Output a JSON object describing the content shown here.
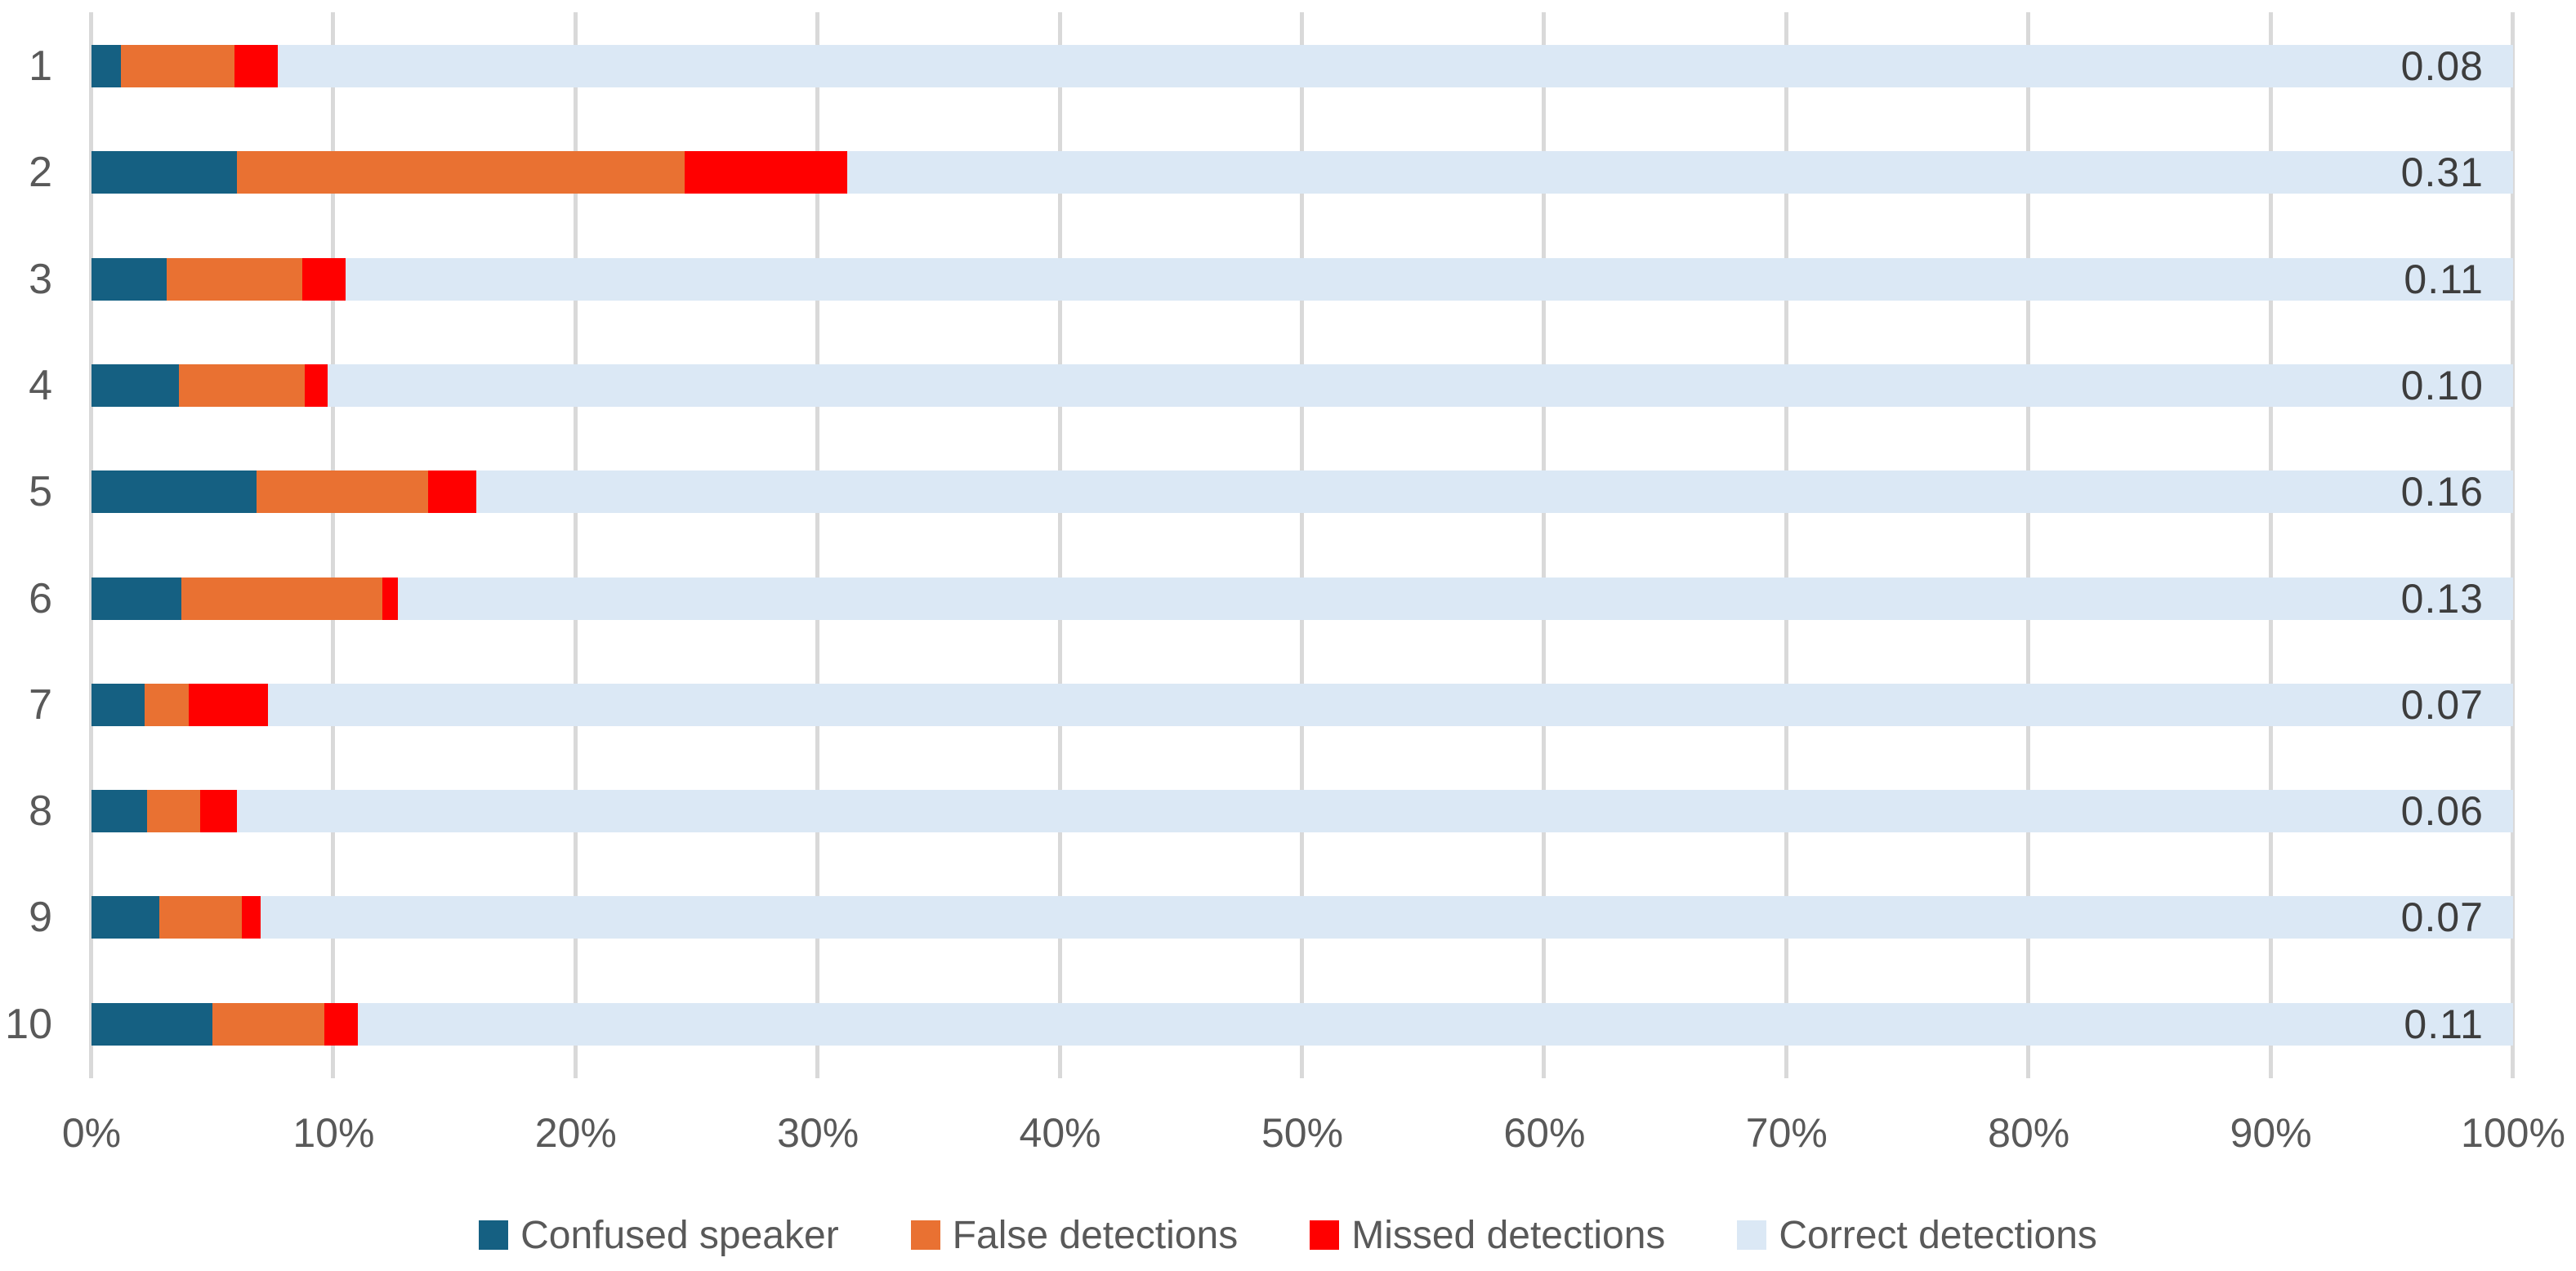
{
  "chart_data": {
    "type": "bar",
    "orientation": "horizontal",
    "stacked": true,
    "title": "",
    "xlabel": "",
    "ylabel": "",
    "xlim": [
      0,
      100
    ],
    "grid": true,
    "legend_position": "bottom",
    "categories": [
      "1",
      "2",
      "3",
      "4",
      "5",
      "6",
      "7",
      "8",
      "9",
      "10"
    ],
    "x_ticks": [
      "0%",
      "10%",
      "20%",
      "30%",
      "40%",
      "50%",
      "60%",
      "70%",
      "80%",
      "90%",
      "100%"
    ],
    "series": [
      {
        "name": "Confused speaker",
        "color": "#156082",
        "values": [
          1.2,
          6.0,
          3.1,
          3.6,
          6.8,
          3.7,
          2.2,
          2.3,
          2.8,
          5.0
        ]
      },
      {
        "name": "False detections",
        "color": "#e97132",
        "values": [
          4.7,
          18.5,
          5.6,
          5.2,
          7.1,
          8.3,
          1.8,
          2.2,
          3.4,
          4.6
        ]
      },
      {
        "name": "Missed detections",
        "color": "#ff0000",
        "values": [
          1.8,
          6.7,
          1.8,
          0.95,
          2.0,
          0.65,
          3.3,
          1.5,
          0.8,
          1.4
        ]
      },
      {
        "name": "Correct detections",
        "color": "#dbe8f5",
        "values": [
          92.3,
          68.8,
          89.5,
          90.25,
          84.1,
          87.35,
          92.7,
          94.0,
          93.0,
          89.0
        ]
      }
    ],
    "bar_labels": [
      "0.08",
      "0.31",
      "0.11",
      "0.10",
      "0.16",
      "0.13",
      "0.07",
      "0.06",
      "0.07",
      "0.11"
    ],
    "colors": {
      "gridline": "#d9d9d9",
      "axis_text": "#595959",
      "bar_label_text": "#3d3d3d"
    }
  }
}
